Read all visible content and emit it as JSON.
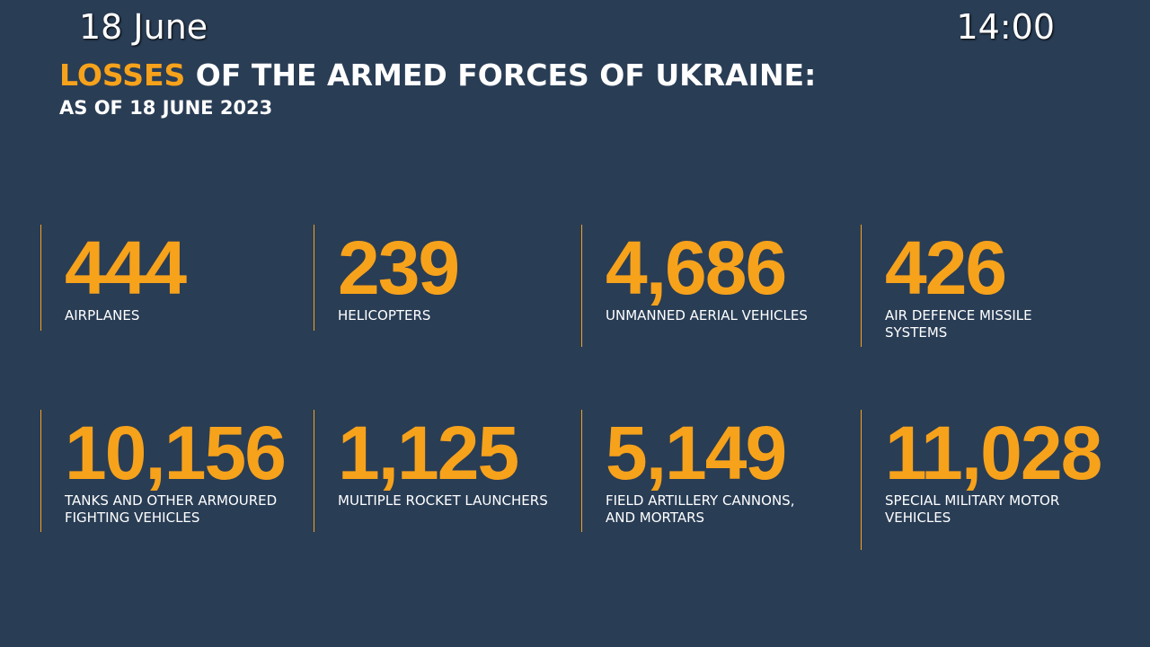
{
  "header": {
    "date": "18 June",
    "time": "14:00",
    "title_highlight": "LOSSES",
    "title_rest": "OF THE ARMED FORCES OF UKRAINE:",
    "subtitle": "AS OF 18 JUNE 2023"
  },
  "stats": [
    {
      "number": "444",
      "label": [
        "AIRPLANES"
      ]
    },
    {
      "number": "239",
      "label": [
        "HELICOPTERS"
      ]
    },
    {
      "number": "4,686",
      "label": [
        "UNMANNED AERIAL VEHICLES"
      ]
    },
    {
      "number": "426",
      "label": [
        "AIR DEFENCE MISSILE",
        "SYSTEMS"
      ]
    },
    {
      "number": "10,156",
      "label": [
        "TANKS AND OTHER ARMOURED",
        "FIGHTING VEHICLES"
      ]
    },
    {
      "number": "1,125",
      "label": [
        "MULTIPLE ROCKET LAUNCHERS"
      ]
    },
    {
      "number": "5,149",
      "label": [
        "FIELD ARTILLERY CANNONS,",
        "AND MORTARS"
      ]
    },
    {
      "number": "11,028",
      "label": [
        "SPECIAL MILITARY MOTOR",
        "VEHICLES"
      ]
    }
  ]
}
